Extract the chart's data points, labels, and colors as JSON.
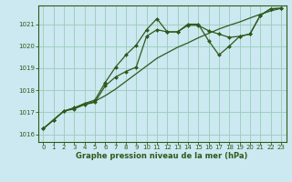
{
  "title": "",
  "xlabel": "Graphe pression niveau de la mer (hPa)",
  "background_color": "#cce8f0",
  "plot_bg_color": "#cce8f0",
  "grid_color": "#99ccbb",
  "line_color": "#2d5a1b",
  "marker_color": "#2d5a1b",
  "ylim": [
    1015.65,
    1021.85
  ],
  "xlim": [
    -0.5,
    23.5
  ],
  "yticks": [
    1016,
    1017,
    1018,
    1019,
    1020,
    1021
  ],
  "xticks": [
    0,
    1,
    2,
    3,
    4,
    5,
    6,
    7,
    8,
    9,
    10,
    11,
    12,
    13,
    14,
    15,
    16,
    17,
    18,
    19,
    20,
    21,
    22,
    23
  ],
  "series1_x": [
    0,
    1,
    2,
    3,
    4,
    5,
    6,
    7,
    8,
    9,
    10,
    11,
    12,
    13,
    14,
    15,
    16,
    17,
    18,
    19,
    20,
    21,
    22,
    23
  ],
  "series1_y": [
    1016.25,
    1016.65,
    1017.05,
    1017.2,
    1017.35,
    1017.5,
    1017.75,
    1018.05,
    1018.4,
    1018.75,
    1019.1,
    1019.45,
    1019.7,
    1019.95,
    1020.15,
    1020.38,
    1020.58,
    1020.78,
    1020.95,
    1021.1,
    1021.28,
    1021.45,
    1021.6,
    1021.72
  ],
  "series2_x": [
    0,
    1,
    2,
    3,
    4,
    5,
    6,
    7,
    8,
    9,
    10,
    11,
    12,
    13,
    14,
    15,
    16,
    17,
    18,
    19,
    20,
    21,
    22,
    23
  ],
  "series2_y": [
    1016.25,
    1016.65,
    1017.05,
    1017.15,
    1017.35,
    1017.45,
    1018.2,
    1018.6,
    1018.85,
    1019.05,
    1020.45,
    1020.75,
    1020.65,
    1020.65,
    1020.95,
    1020.95,
    1020.7,
    1020.55,
    1020.4,
    1020.45,
    1020.55,
    1021.4,
    1021.7,
    1021.72
  ],
  "series3_x": [
    0,
    1,
    2,
    3,
    4,
    5,
    6,
    7,
    8,
    9,
    10,
    11,
    12,
    13,
    14,
    15,
    16,
    17,
    18,
    19,
    20,
    21,
    22,
    23
  ],
  "series3_y": [
    1016.25,
    1016.65,
    1017.05,
    1017.2,
    1017.4,
    1017.55,
    1018.35,
    1019.05,
    1019.6,
    1020.05,
    1020.75,
    1021.25,
    1020.65,
    1020.65,
    1021.0,
    1021.0,
    1020.25,
    1019.6,
    1020.0,
    1020.45,
    1020.55,
    1021.4,
    1021.7,
    1021.72
  ]
}
